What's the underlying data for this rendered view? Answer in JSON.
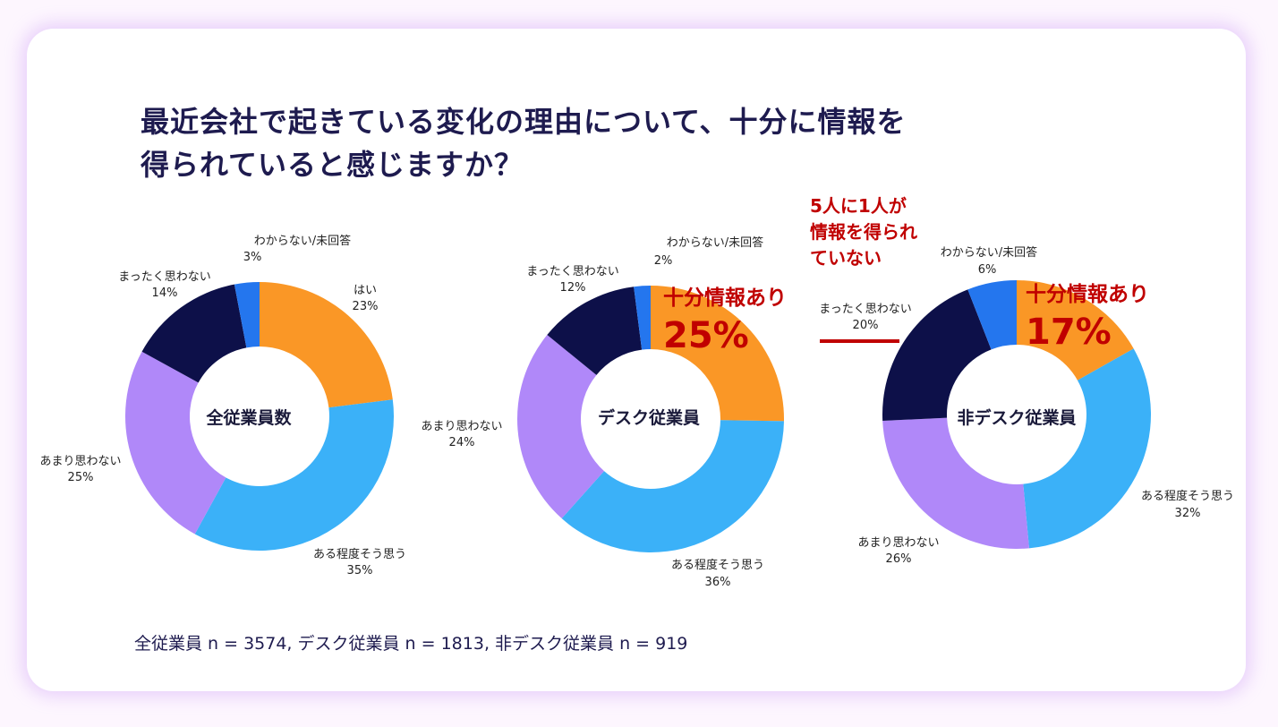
{
  "title_lines": [
    "最近会社で起きている変化の理由について、十分に情報を",
    "得られていると感じますか？"
  ],
  "colors": {
    "はい": "#fa9726",
    "ある程度そう思う": "#3bb1f8",
    "あまり思わない": "#b088f9",
    "まったく思わない": "#0d1049",
    "わからない/未回答": "#2476ee",
    "callout": "#c00000",
    "title": "#1e1b4f"
  },
  "chart_data": [
    {
      "type": "pie",
      "center_label": "全従業員数",
      "categories": [
        "はい",
        "ある程度そう思う",
        "あまり思わない",
        "まったく思わない",
        "わからない/未回答"
      ],
      "values": [
        23,
        35,
        25,
        14,
        3
      ],
      "value_labels": [
        "23%",
        "35%",
        "25%",
        "14%",
        "3%"
      ]
    },
    {
      "type": "pie",
      "center_label": "デスク従業員",
      "categories": [
        "はい",
        "ある程度そう思う",
        "あまり思わない",
        "まったく思わない",
        "わからない/未回答"
      ],
      "values": [
        25,
        36,
        24,
        12,
        2
      ],
      "value_labels": [
        "",
        "36%",
        "24%",
        "12%",
        "2%"
      ],
      "callout": {
        "text": "十分情報あり",
        "value": "25%"
      }
    },
    {
      "type": "pie",
      "center_label": "非デスク従業員",
      "categories": [
        "はい",
        "ある程度そう思う",
        "あまり思わない",
        "まったく思わない",
        "わからない/未回答"
      ],
      "values": [
        17,
        32,
        26,
        20,
        6
      ],
      "value_labels": [
        "",
        "32%",
        "26%",
        "20%",
        "6%"
      ],
      "callout": {
        "text": "十分情報あり",
        "value": "17%"
      }
    }
  ],
  "annotation": {
    "lines": [
      "5人に1人が",
      "情報を得られ",
      "ていない"
    ]
  },
  "footnote": "全従業員 n = 3574, デスク従業員 n = 1813, 非デスク従業員 n = 919"
}
